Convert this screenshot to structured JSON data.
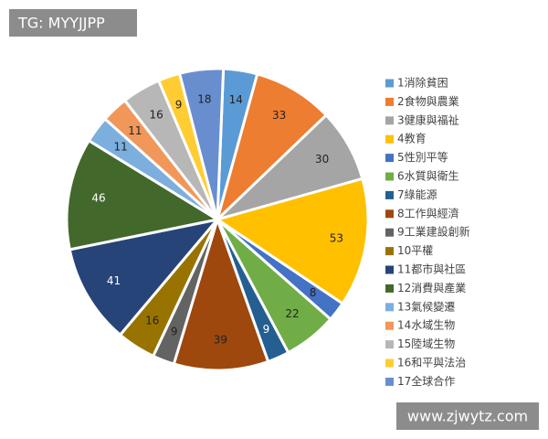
{
  "chart_data": {
    "type": "pie",
    "categories": [
      "1消除貧困",
      "2食物與農業",
      "3健康與福祉",
      "4教育",
      "5性別平等",
      "6水質與衛生",
      "7綠能源",
      "8工作與經濟",
      "9工業建設創新",
      "10平權",
      "11都市與社區",
      "12消費與產業",
      "13氣候變遷",
      "14水域生物",
      "15陸域生物",
      "16和平與法治",
      "17全球合作"
    ],
    "values": [
      14,
      33,
      30,
      53,
      8,
      22,
      9,
      39,
      9,
      16,
      41,
      46,
      11,
      11,
      16,
      9,
      18
    ],
    "colors": [
      "#5B9BD5",
      "#ED7D31",
      "#A5A5A5",
      "#FFC000",
      "#4472C4",
      "#70AD47",
      "#255E91",
      "#9E480E",
      "#636363",
      "#997300",
      "#264478",
      "#43682B",
      "#7CAFDD",
      "#F1975A",
      "#B7B7B7",
      "#FFCD33",
      "#698ED0"
    ],
    "legend": "right"
  },
  "watermarks": [
    "TG: MYYJJPP",
    "www.zjwytz.com"
  ]
}
